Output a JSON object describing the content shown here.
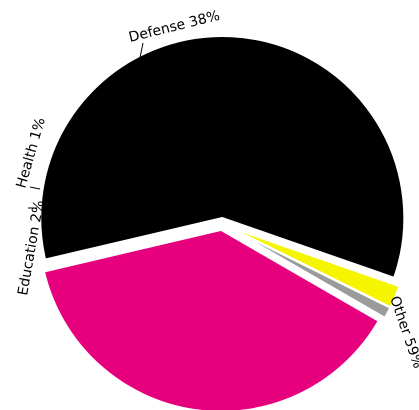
{
  "chart_data": {
    "type": "pie",
    "title": "",
    "legend": "none",
    "slices": [
      {
        "label": "Defense 38%",
        "name": "Defense",
        "value": 38,
        "color": "#e6007e"
      },
      {
        "label": "Other 59%",
        "name": "Other",
        "value": 59,
        "color": "#000000"
      },
      {
        "label": "Education 2%",
        "name": "Education",
        "value": 2,
        "color": "#f5f500"
      },
      {
        "label": "Health 1%",
        "name": "Health",
        "value": 1,
        "color": "#9b9b9b"
      }
    ]
  }
}
